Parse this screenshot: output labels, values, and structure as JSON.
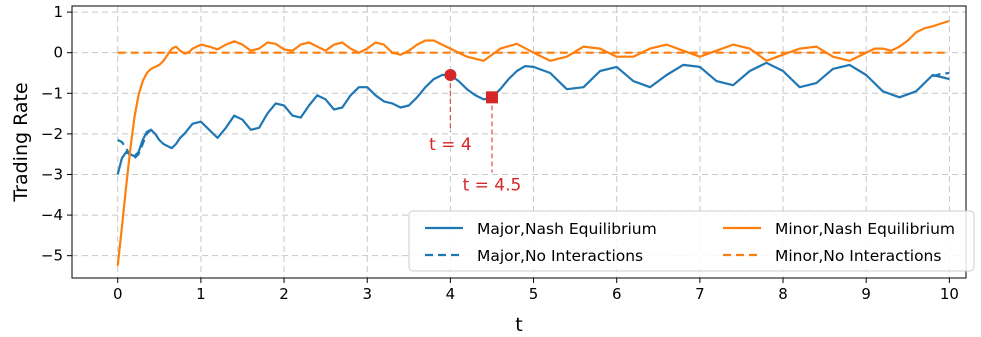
{
  "chart_data": {
    "type": "line",
    "xlabel": "t",
    "ylabel": "Trading Rate",
    "xlim": [
      -0.55,
      10.2
    ],
    "ylim": [
      -5.55,
      1.15
    ],
    "xticks": [
      0,
      1,
      2,
      3,
      4,
      5,
      6,
      7,
      8,
      9,
      10
    ],
    "yticks": [
      1,
      0,
      -1,
      -2,
      -3,
      -4,
      -5
    ],
    "ytick_labels": [
      "1",
      "0",
      "−1",
      "−2",
      "−3",
      "−4",
      "−5"
    ],
    "grid": true,
    "legend_location": "lower right",
    "series": [
      {
        "name": "Major,Nash Equilibrium",
        "color": "#1f77b4",
        "style": "solid",
        "x": [
          0,
          0.05,
          0.1,
          0.15,
          0.2,
          0.25,
          0.3,
          0.35,
          0.4,
          0.45,
          0.5,
          0.55,
          0.6,
          0.65,
          0.7,
          0.75,
          0.8,
          0.9,
          1.0,
          1.1,
          1.2,
          1.3,
          1.4,
          1.5,
          1.6,
          1.7,
          1.8,
          1.9,
          2.0,
          2.1,
          2.2,
          2.3,
          2.4,
          2.5,
          2.6,
          2.7,
          2.8,
          2.9,
          3.0,
          3.1,
          3.2,
          3.3,
          3.4,
          3.5,
          3.6,
          3.7,
          3.8,
          3.9,
          4.0,
          4.1,
          4.2,
          4.3,
          4.4,
          4.5,
          4.6,
          4.7,
          4.8,
          4.9,
          5.0,
          5.2,
          5.4,
          5.6,
          5.8,
          6.0,
          6.2,
          6.4,
          6.6,
          6.8,
          7.0,
          7.2,
          7.4,
          7.6,
          7.8,
          8.0,
          8.2,
          8.4,
          8.6,
          8.8,
          9.0,
          9.2,
          9.4,
          9.6,
          9.8,
          9.9,
          10.0
        ],
        "y": [
          -3.0,
          -2.6,
          -2.45,
          -2.5,
          -2.55,
          -2.45,
          -2.15,
          -1.95,
          -1.9,
          -2.0,
          -2.15,
          -2.25,
          -2.3,
          -2.35,
          -2.25,
          -2.1,
          -2.0,
          -1.75,
          -1.7,
          -1.9,
          -2.1,
          -1.85,
          -1.55,
          -1.65,
          -1.9,
          -1.85,
          -1.5,
          -1.25,
          -1.3,
          -1.55,
          -1.6,
          -1.3,
          -1.05,
          -1.15,
          -1.4,
          -1.35,
          -1.05,
          -0.85,
          -0.85,
          -1.05,
          -1.2,
          -1.25,
          -1.35,
          -1.3,
          -1.1,
          -0.85,
          -0.65,
          -0.55,
          -0.55,
          -0.7,
          -0.9,
          -1.05,
          -1.15,
          -1.1,
          -0.9,
          -0.65,
          -0.45,
          -0.33,
          -0.35,
          -0.5,
          -0.9,
          -0.85,
          -0.45,
          -0.35,
          -0.7,
          -0.85,
          -0.55,
          -0.3,
          -0.35,
          -0.7,
          -0.8,
          -0.45,
          -0.25,
          -0.45,
          -0.85,
          -0.75,
          -0.4,
          -0.3,
          -0.55,
          -0.95,
          -1.1,
          -0.95,
          -0.55,
          -0.6,
          -0.65
        ]
      },
      {
        "name": "Major,No Interactions",
        "color": "#1f77b4",
        "style": "dashed",
        "x": [
          0,
          0.05,
          0.1,
          0.15,
          0.2,
          0.25,
          0.3,
          0.35,
          0.4,
          0.45
        ],
        "y": [
          -2.15,
          -2.2,
          -2.35,
          -2.55,
          -2.6,
          -2.5,
          -2.25,
          -2.0,
          -1.9,
          -2.0
        ]
      },
      {
        "name": "Major,No Interactions",
        "color": "#1f77b4",
        "style": "dashed",
        "x": [
          9.8,
          9.9,
          10.0
        ],
        "y": [
          -0.58,
          -0.52,
          -0.5
        ]
      },
      {
        "name": "Minor,Nash Equilibrium",
        "color": "#ff7f0e",
        "style": "solid",
        "x": [
          0,
          0.05,
          0.1,
          0.15,
          0.2,
          0.25,
          0.3,
          0.35,
          0.4,
          0.45,
          0.5,
          0.55,
          0.6,
          0.65,
          0.7,
          0.75,
          0.8,
          0.85,
          0.9,
          1.0,
          1.1,
          1.2,
          1.3,
          1.4,
          1.5,
          1.6,
          1.7,
          1.8,
          1.9,
          2.0,
          2.1,
          2.2,
          2.3,
          2.4,
          2.5,
          2.6,
          2.7,
          2.8,
          2.9,
          3.0,
          3.1,
          3.2,
          3.3,
          3.4,
          3.5,
          3.6,
          3.7,
          3.8,
          3.9,
          4.0,
          4.2,
          4.4,
          4.6,
          4.8,
          5.0,
          5.2,
          5.4,
          5.6,
          5.8,
          6.0,
          6.2,
          6.4,
          6.6,
          6.8,
          7.0,
          7.2,
          7.4,
          7.6,
          7.8,
          8.0,
          8.2,
          8.4,
          8.6,
          8.8,
          9.0,
          9.1,
          9.2,
          9.3,
          9.4,
          9.5,
          9.6,
          9.7,
          9.8,
          9.9,
          10.0
        ],
        "y": [
          -5.25,
          -4.3,
          -3.3,
          -2.4,
          -1.6,
          -1.05,
          -0.7,
          -0.5,
          -0.4,
          -0.35,
          -0.3,
          -0.2,
          -0.05,
          0.1,
          0.15,
          0.05,
          -0.02,
          0.0,
          0.1,
          0.2,
          0.15,
          0.08,
          0.2,
          0.28,
          0.2,
          0.05,
          0.1,
          0.25,
          0.22,
          0.08,
          0.05,
          0.2,
          0.25,
          0.15,
          0.05,
          0.2,
          0.25,
          0.1,
          0.0,
          0.1,
          0.25,
          0.2,
          0.0,
          -0.05,
          0.05,
          0.2,
          0.3,
          0.3,
          0.2,
          0.1,
          -0.1,
          -0.2,
          0.1,
          0.22,
          0.0,
          -0.2,
          -0.1,
          0.15,
          0.1,
          -0.1,
          -0.1,
          0.1,
          0.2,
          0.05,
          -0.1,
          0.05,
          0.2,
          0.1,
          -0.2,
          -0.05,
          0.1,
          0.15,
          -0.1,
          -0.2,
          0.0,
          0.1,
          0.1,
          0.05,
          0.15,
          0.3,
          0.5,
          0.6,
          0.65,
          0.72,
          0.78
        ]
      },
      {
        "name": "Minor,No Interactions",
        "color": "#ff7f0e",
        "style": "dashed",
        "x": [
          0,
          10
        ],
        "y": [
          0,
          0
        ]
      }
    ],
    "markers": [
      {
        "label": "t = 4",
        "x": 4.0,
        "y": -0.55,
        "shape": "circle",
        "color": "#d62728"
      },
      {
        "label": "t = 4.5",
        "x": 4.5,
        "y": -1.1,
        "shape": "square",
        "color": "#d62728"
      }
    ],
    "annotations": [
      {
        "text": "t = 4",
        "x": 4.0,
        "y": -2.25
      },
      {
        "text": "t = 4.5",
        "x": 4.5,
        "y": -3.25
      }
    ],
    "legend": [
      {
        "name": "Major,Nash Equilibrium",
        "color": "#1f77b4",
        "style": "solid"
      },
      {
        "name": "Minor,Nash Equilibrium",
        "color": "#ff7f0e",
        "style": "solid"
      },
      {
        "name": "Major,No Interactions",
        "color": "#1f77b4",
        "style": "dashed"
      },
      {
        "name": "Minor,No Interactions",
        "color": "#ff7f0e",
        "style": "dashed"
      }
    ]
  }
}
